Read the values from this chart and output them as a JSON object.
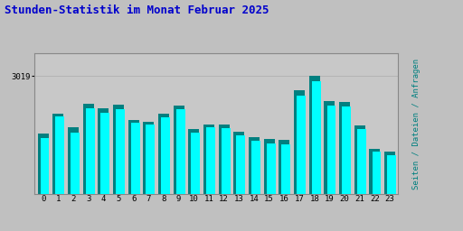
{
  "title": "Stunden-Statistik im Monat Februar 2025",
  "title_color": "#0000cc",
  "title_fontsize": 9,
  "background_color": "#c0c0c0",
  "plot_bg_color": "#c8c8c8",
  "right_label": "Seiten / Dateien / Anfragen",
  "right_label_color": "#008080",
  "ytick_label": "3019",
  "categories": [
    0,
    1,
    2,
    3,
    4,
    5,
    6,
    7,
    8,
    9,
    10,
    11,
    12,
    13,
    14,
    15,
    16,
    17,
    18,
    19,
    20,
    21,
    22,
    23
  ],
  "bar1_values": [
    1550,
    2050,
    1700,
    2300,
    2200,
    2280,
    1900,
    1850,
    2050,
    2250,
    1650,
    1780,
    1780,
    1600,
    1450,
    1400,
    1380,
    2650,
    3019,
    2380,
    2350,
    1750,
    1150,
    1080
  ],
  "bar2_values": [
    1420,
    1980,
    1580,
    2200,
    2080,
    2160,
    1820,
    1780,
    1960,
    2160,
    1560,
    1700,
    1680,
    1510,
    1360,
    1300,
    1280,
    2520,
    2880,
    2260,
    2240,
    1660,
    1080,
    1000
  ],
  "bar1_color": "#008080",
  "bar2_color": "#00ffff",
  "ylim_max": 3600,
  "grid_color": "#aaaaaa",
  "border_color": "#888888",
  "font_family": "monospace"
}
